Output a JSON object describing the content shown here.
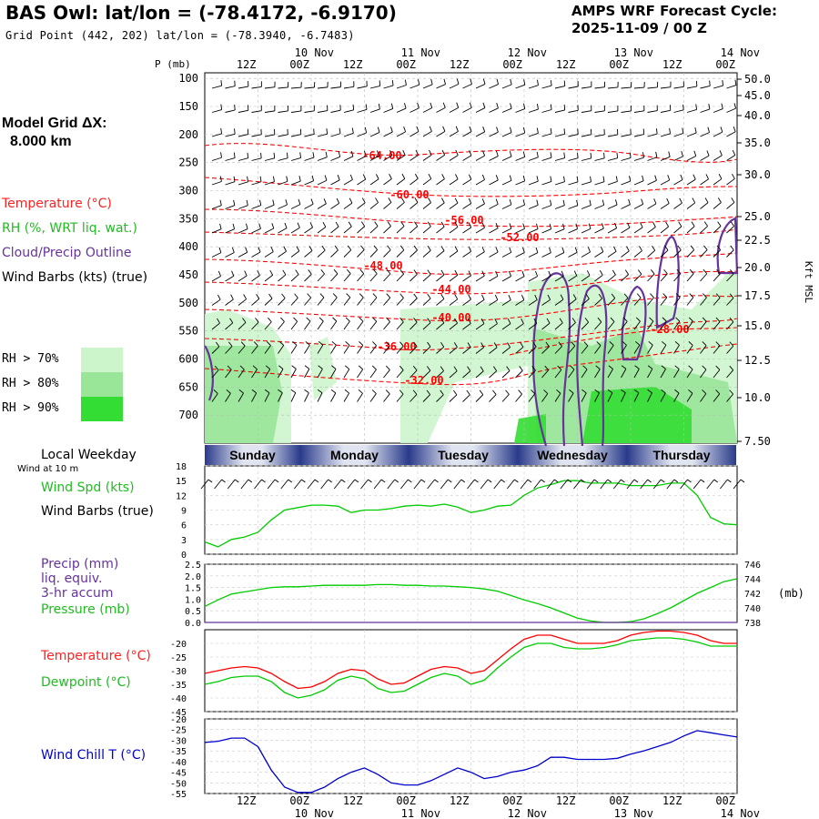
{
  "header": {
    "title": "BAS Owl:  lat/lon = (-78.4172, -6.9170)",
    "grid_point": "Grid Point (442, 202) lat/lon = (-78.3940, -6.7483)",
    "forecast_label": "AMPS WRF Forecast Cycle:",
    "forecast_cycle": "2025-11-09 / 00  Z"
  },
  "left_panel": {
    "model_grid": "Model Grid ΔX:",
    "model_grid_value": "8.000 km",
    "temperature_label": "Temperature (°C)",
    "rh_label": "RH (%, WRT liq. wat.)",
    "cloud_label": "Cloud/Precip Outline",
    "wind_label": "Wind Barbs (kts) (true)",
    "rh_legend": [
      {
        "label": "RH > 70%",
        "color": "#ccf5cc"
      },
      {
        "label": "RH > 80%",
        "color": "#99e699"
      },
      {
        "label": "RH > 90%",
        "color": "#33dd33"
      }
    ],
    "local_weekday": "Local Weekday",
    "wind_at_10m": "Wind at 10 m",
    "wind_spd_label": "Wind Spd (kts)",
    "wind_barbs_label": "Wind Barbs (true)",
    "precip_label": "Precip (mm)",
    "liq_equiv": "liq. equiv.",
    "accum_label": "3-hr accum",
    "pressure_label": "Pressure (mb)",
    "temp_label2": "Temperature (°C)",
    "dewpoint_label": "Dewpoint (°C)",
    "wind_chill_label": "Wind Chill T (°C)"
  },
  "colors": {
    "temperature": "#ff0000",
    "rh_text": "#22bb22",
    "cloud": "#663399",
    "wind_chill": "#0000cc",
    "pressure": "#00cc00",
    "banner_edge": "#2a3a8a",
    "banner_mid": "#e0e4f0"
  },
  "top_axis": {
    "p_label": "P (mb)",
    "time_ticks": [
      "12Z",
      "00Z",
      "12Z",
      "00Z",
      "12Z",
      "00Z",
      "12Z",
      "00Z",
      "12Z",
      "00Z"
    ],
    "date_labels": [
      "10 Nov",
      "11 Nov",
      "12 Nov",
      "13 Nov",
      "14 Nov"
    ]
  },
  "right_axis": {
    "kft_label": "Kft MSL",
    "heights": [
      "50.0",
      "45.0",
      "40.0",
      "35.0",
      "30.0",
      "25.0",
      "22.5",
      "20.0",
      "17.5",
      "15.0",
      "12.5",
      "10.0",
      "7.50"
    ]
  },
  "weekdays": [
    "Sunday",
    "Monday",
    "Tuesday",
    "Wednesday",
    "Thursday"
  ],
  "chart_data": [
    {
      "type": "heatmap",
      "name": "cross-section",
      "y_axis": "P (mb)",
      "pressure_levels": [
        100,
        150,
        200,
        250,
        300,
        350,
        400,
        450,
        500,
        550,
        600,
        650,
        700
      ],
      "ylim": [
        90,
        750
      ],
      "right_axis": "Kft MSL",
      "isotherm_labels": [
        "-64.00",
        "-60.00",
        "-56.00",
        "-52.00",
        "-48.00",
        "-44.00",
        "-40.00",
        "-36.00",
        "-32.00",
        "-28.00"
      ],
      "time_range_hours": [
        0,
        120
      ]
    },
    {
      "type": "line",
      "name": "wind-speed",
      "ylabel": "Wind Spd (kts)",
      "yticks": [
        0,
        3,
        6,
        9,
        12,
        15,
        18
      ],
      "ylim": [
        0,
        18
      ],
      "x_hours": [
        0,
        3,
        6,
        9,
        12,
        15,
        18,
        21,
        24,
        27,
        30,
        33,
        36,
        39,
        42,
        45,
        48,
        51,
        54,
        57,
        60,
        63,
        66,
        69,
        72,
        75,
        78,
        81,
        84,
        87,
        90,
        93,
        96,
        99,
        102,
        105,
        108,
        111,
        114,
        117,
        120
      ],
      "values": [
        2.5,
        1.5,
        3,
        3.5,
        4.5,
        7,
        9,
        9.5,
        10,
        10,
        9.8,
        8.5,
        9,
        9,
        9.3,
        9.8,
        10,
        9.8,
        10.2,
        9.6,
        8.5,
        9,
        9.8,
        10,
        12,
        13.5,
        14.2,
        15,
        15,
        14.5,
        14.5,
        14.5,
        14,
        14,
        14,
        14.5,
        14.5,
        12,
        7.5,
        6.2,
        6
      ]
    },
    {
      "type": "line",
      "name": "pressure-precip",
      "ylabel": "Pressure (mb)",
      "yticks_left": [
        0.0,
        0.5,
        1.0,
        1.5,
        2.0,
        2.5
      ],
      "yticks_right": [
        738,
        740,
        742,
        744,
        746
      ],
      "ylim_right": [
        738,
        746
      ],
      "x_hours": [
        0,
        3,
        6,
        9,
        12,
        15,
        18,
        21,
        24,
        27,
        30,
        33,
        36,
        39,
        42,
        45,
        48,
        51,
        54,
        57,
        60,
        63,
        66,
        69,
        72,
        75,
        78,
        81,
        84,
        87,
        90,
        93,
        96,
        99,
        102,
        105,
        108,
        111,
        114,
        117,
        120
      ],
      "pressure": [
        740.2,
        741.1,
        741.9,
        742.2,
        742.5,
        742.8,
        742.9,
        742.9,
        743.0,
        743.1,
        743.1,
        743.1,
        743.1,
        743.2,
        743.2,
        743.1,
        743.1,
        743.0,
        743.0,
        742.9,
        742.8,
        742.6,
        742.3,
        741.7,
        741.1,
        740.6,
        740.0,
        739.3,
        738.6,
        738.2,
        738.0,
        738.0,
        738.1,
        738.5,
        739.2,
        740.0,
        741.0,
        742.0,
        742.8,
        743.6,
        744.0
      ],
      "precip": [
        0,
        0,
        0,
        0,
        0,
        0,
        0,
        0,
        0,
        0,
        0,
        0,
        0,
        0,
        0,
        0,
        0,
        0,
        0,
        0,
        0,
        0,
        0,
        0,
        0,
        0,
        0,
        0,
        0,
        0,
        0,
        0,
        0,
        0,
        0,
        0,
        0,
        0,
        0,
        0,
        0
      ]
    },
    {
      "type": "line",
      "name": "temperature-dewpoint",
      "yticks": [
        -45,
        -40,
        -35,
        -30,
        -25,
        -20
      ],
      "ylim": [
        -45,
        -15
      ],
      "x_hours": [
        0,
        3,
        6,
        9,
        12,
        15,
        18,
        21,
        24,
        27,
        30,
        33,
        36,
        39,
        42,
        45,
        48,
        51,
        54,
        57,
        60,
        63,
        66,
        69,
        72,
        75,
        78,
        81,
        84,
        87,
        90,
        93,
        96,
        99,
        102,
        105,
        108,
        111,
        114,
        117,
        120
      ],
      "series": [
        {
          "name": "Temperature (°C)",
          "color": "#ff0000",
          "values": [
            -31,
            -30,
            -29,
            -28.5,
            -29,
            -31,
            -34,
            -36.5,
            -36,
            -34,
            -31,
            -29.5,
            -30,
            -33,
            -35,
            -34.5,
            -32,
            -29.5,
            -28.5,
            -29,
            -31,
            -30,
            -26,
            -22,
            -18.5,
            -17,
            -17,
            -18.5,
            -20,
            -20,
            -20,
            -19,
            -17,
            -16,
            -15.5,
            -15.5,
            -16,
            -17,
            -19,
            -20,
            -20
          ]
        },
        {
          "name": "Dewpoint (°C)",
          "color": "#00cc00",
          "values": [
            -35,
            -34,
            -32.5,
            -32,
            -32,
            -34,
            -38,
            -40,
            -39,
            -37,
            -33.5,
            -32,
            -33,
            -36.5,
            -38,
            -37.5,
            -35,
            -32.5,
            -31,
            -32,
            -35,
            -33.5,
            -29,
            -25,
            -21.5,
            -20,
            -20,
            -21.5,
            -22,
            -22,
            -21.5,
            -20.5,
            -19,
            -18.5,
            -18,
            -18,
            -18.5,
            -19.5,
            -21,
            -21,
            -21
          ]
        }
      ]
    },
    {
      "type": "line",
      "name": "wind-chill",
      "ylabel": "Wind Chill T (°C)",
      "yticks": [
        -55,
        -50,
        -45,
        -40,
        -35,
        -30,
        -25,
        -20
      ],
      "ylim": [
        -55,
        -20
      ],
      "x_hours": [
        0,
        3,
        6,
        9,
        12,
        15,
        18,
        21,
        24,
        27,
        30,
        33,
        36,
        39,
        42,
        45,
        48,
        51,
        54,
        57,
        60,
        63,
        66,
        69,
        72,
        75,
        78,
        81,
        84,
        87,
        90,
        93,
        96,
        99,
        102,
        105,
        108,
        111,
        114,
        117,
        120
      ],
      "values": [
        -31,
        -30.5,
        -29,
        -29,
        -33,
        -44,
        -52,
        -54.5,
        -54.5,
        -52,
        -48,
        -45,
        -43,
        -46,
        -50,
        -51,
        -51,
        -49,
        -46,
        -43,
        -45,
        -48,
        -47,
        -45,
        -44,
        -42,
        -38,
        -38,
        -39,
        -39,
        -39,
        -38.5,
        -36.5,
        -35,
        -33,
        -31,
        -28,
        -25.5,
        -26.5,
        -27.5,
        -28.5
      ]
    }
  ]
}
